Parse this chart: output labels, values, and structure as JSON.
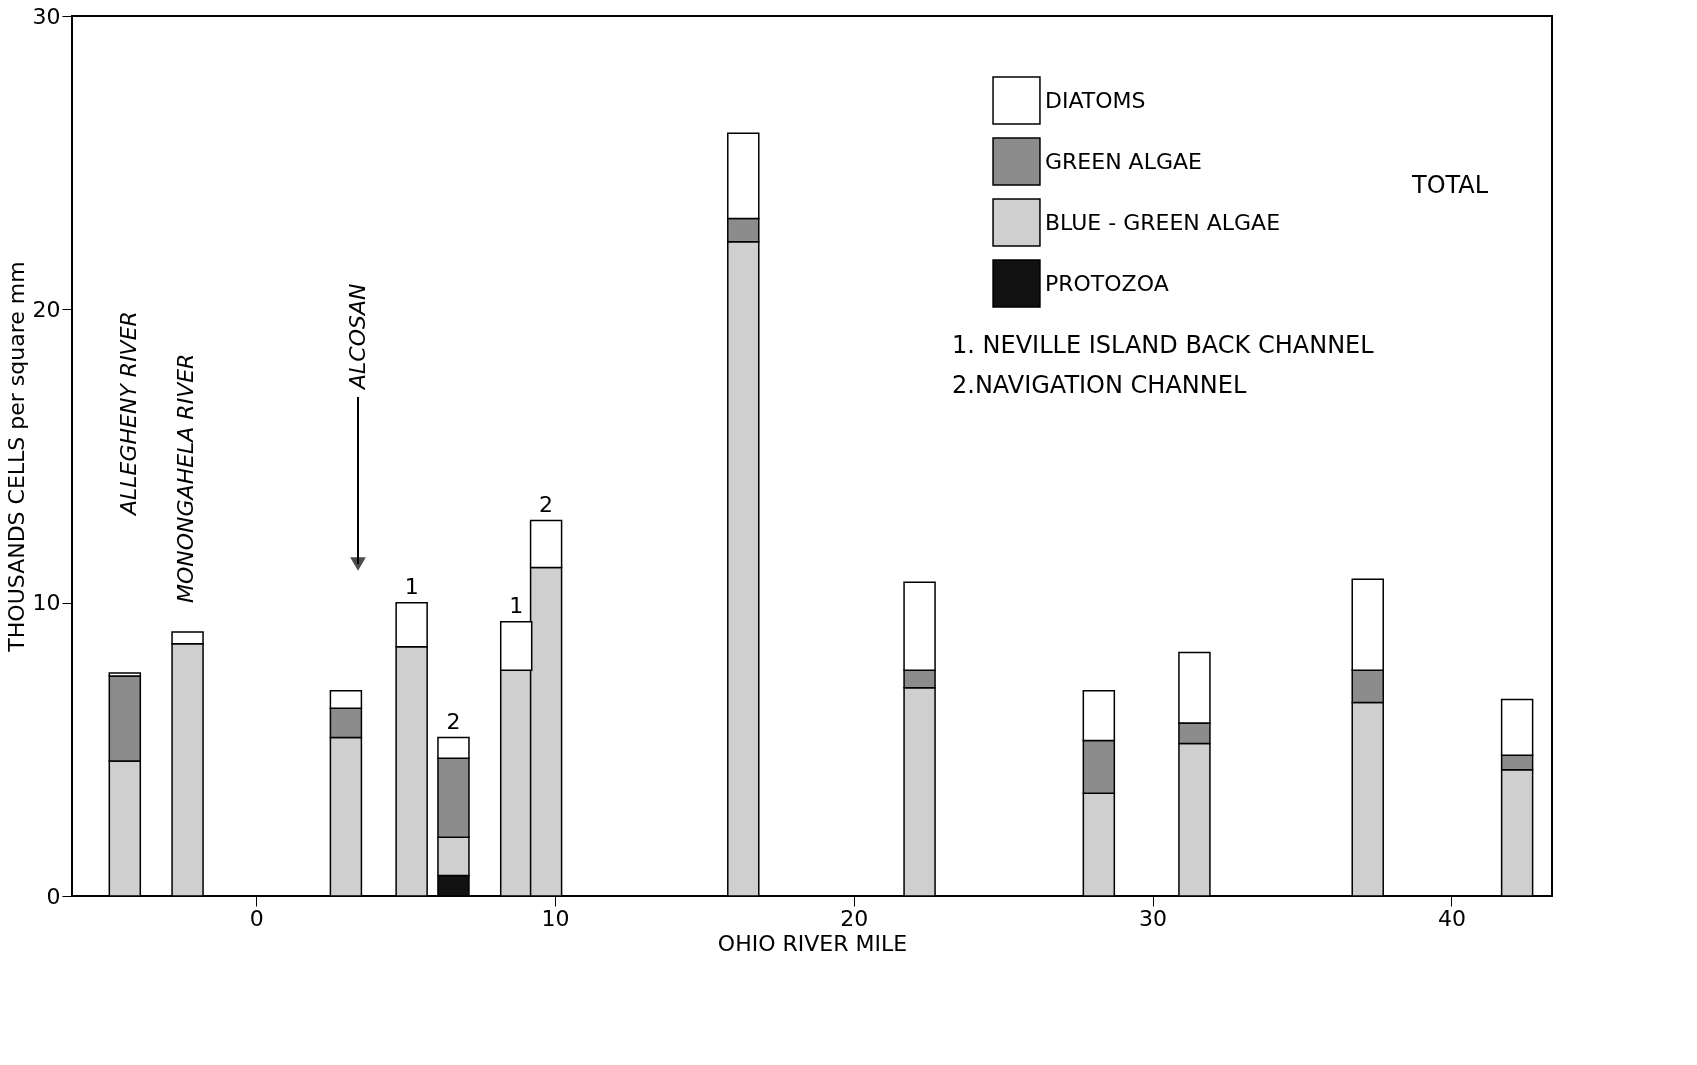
{
  "chart_data": {
    "type": "bar",
    "stacked": true,
    "xlabel": "OHIO RIVER MILE",
    "ylabel": "THOUSANDS  CELLS per square mm",
    "x": [
      -4.4,
      -2.3,
      3.0,
      5.2,
      6.6,
      8.7,
      9.7,
      16.3,
      22.2,
      28.2,
      31.4,
      37.2,
      42.2
    ],
    "series": [
      {
        "name": "PROTOZOA",
        "color": "#111111",
        "values": [
          null,
          null,
          null,
          null,
          0.7,
          null,
          null,
          null,
          null,
          null,
          null,
          null,
          null
        ]
      },
      {
        "name": "BLUE - GREEN ALGAE",
        "color": "#cfcfcf",
        "values": [
          4.6,
          8.6,
          5.4,
          8.5,
          1.3,
          7.7,
          11.2,
          22.3,
          7.1,
          3.5,
          5.2,
          6.6,
          4.3
        ]
      },
      {
        "name": "GREEN ALGAE",
        "color": "#8c8c8c",
        "values": [
          2.9,
          null,
          1.0,
          null,
          2.7,
          null,
          null,
          0.8,
          0.6,
          1.8,
          0.7,
          1.1,
          0.5
        ]
      },
      {
        "name": "DIATOMS",
        "color": "#ffffff",
        "values": [
          0.1,
          0.4,
          0.6,
          1.5,
          0.7,
          1.65,
          1.6,
          2.9,
          3.0,
          1.7,
          2.4,
          3.1,
          1.9
        ]
      }
    ],
    "xlim": [
      -6,
      43.2
    ],
    "xticks": [
      0,
      10,
      20,
      30,
      40
    ],
    "ylim": [
      0,
      30
    ],
    "yticks": [
      0,
      10,
      20,
      30
    ],
    "grid": false,
    "legend": "top right",
    "annotations": [
      "ALLEGHENY RIVER",
      "MONONGAHELA RIVER",
      "ALCOSAN",
      {
        "text": "1",
        "x": 5.2,
        "y": 10.0
      },
      {
        "text": "2",
        "x": 6.6,
        "y": 5.4
      },
      {
        "text": "1",
        "x": 8.7,
        "y": 9.35
      },
      {
        "text": "2",
        "x": 9.7,
        "y": 12.8
      },
      "TOTAL",
      "1. NEVILLE ISLAND BACK CHANNEL",
      "2.NAVIGATION CHANNEL"
    ]
  }
}
